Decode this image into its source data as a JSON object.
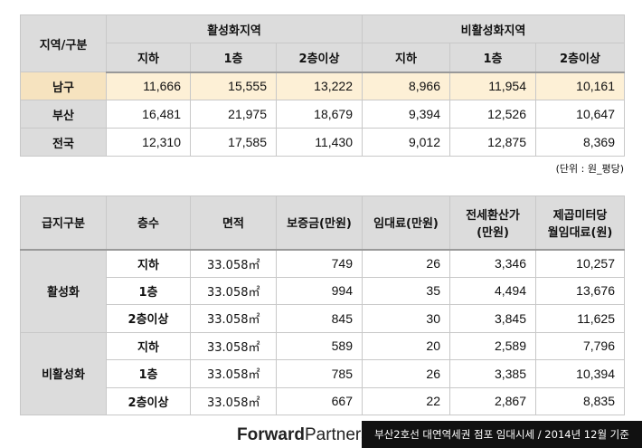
{
  "table1": {
    "corner": "지역/구분",
    "groups": [
      "활성화지역",
      "비활성화지역"
    ],
    "subheaders": [
      "지하",
      "1층",
      "2층이상",
      "지하",
      "1층",
      "2층이상"
    ],
    "rows": [
      {
        "label": "남구",
        "cells": [
          "11,666",
          "15,555",
          "13,222",
          "8,966",
          "11,954",
          "10,161"
        ]
      },
      {
        "label": "부산",
        "cells": [
          "16,481",
          "21,975",
          "18,679",
          "9,394",
          "12,526",
          "10,647"
        ]
      },
      {
        "label": "전국",
        "cells": [
          "12,310",
          "17,585",
          "11,430",
          "9,012",
          "12,875",
          "8,369"
        ]
      }
    ]
  },
  "unit_note": "(단위 : 원_평당)",
  "table2": {
    "headers": [
      "급지구분",
      "층수",
      "면적",
      "보증금(만원)",
      "임대료(만원)",
      "전세환산가\n(만원)",
      "제곱미터당\n월임대료(원)"
    ],
    "groups": [
      {
        "label": "활성화",
        "rows": [
          {
            "floor": "지하",
            "area": "33.058㎡",
            "cells": [
              "749",
              "26",
              "3,346",
              "10,257"
            ]
          },
          {
            "floor": "1층",
            "area": "33.058㎡",
            "cells": [
              "994",
              "35",
              "4,494",
              "13,676"
            ]
          },
          {
            "floor": "2층이상",
            "area": "33.058㎡",
            "cells": [
              "845",
              "30",
              "3,845",
              "11,625"
            ]
          }
        ]
      },
      {
        "label": "비활성화",
        "rows": [
          {
            "floor": "지하",
            "area": "33.058㎡",
            "cells": [
              "589",
              "20",
              "2,589",
              "7,796"
            ]
          },
          {
            "floor": "1층",
            "area": "33.058㎡",
            "cells": [
              "785",
              "26",
              "3,385",
              "10,394"
            ]
          },
          {
            "floor": "2층이상",
            "area": "33.058㎡",
            "cells": [
              "667",
              "22",
              "2,867",
              "8,835"
            ]
          }
        ]
      }
    ]
  },
  "footer": {
    "logo_bold": "Forward",
    "logo_light": "Partners",
    "caption": "부산2호선 대연역세권 점포 임대시세 / 2014년 12월 기준"
  }
}
